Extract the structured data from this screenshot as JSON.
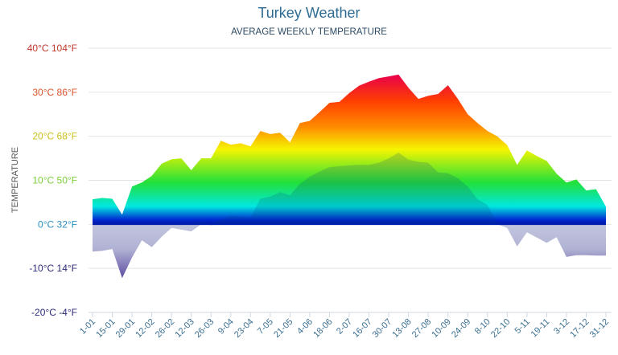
{
  "chart_data": {
    "type": "area",
    "title": "Turkey Weather",
    "subtitle": "AVERAGE WEEKLY TEMPERATURE",
    "ylabel": "TEMPERATURE",
    "xlabel": "",
    "ylim": [
      -20,
      40
    ],
    "grid": true,
    "y_ticks": [
      {
        "value": 40,
        "label": "40°C 104°F",
        "color": "#c0392b"
      },
      {
        "value": 30,
        "label": "30°C 86°F",
        "color": "#d9542b"
      },
      {
        "value": 20,
        "label": "20°C 68°F",
        "color": "#cfc020"
      },
      {
        "value": 10,
        "label": "10°C 50°F",
        "color": "#7ccf3a"
      },
      {
        "value": 0,
        "label": "0°C 32°F",
        "color": "#2a8fc0"
      },
      {
        "value": -10,
        "label": "-10°C 14°F",
        "color": "#2c2c7a"
      },
      {
        "value": -20,
        "label": "-20°C -4°F",
        "color": "#2c2c7a"
      }
    ],
    "x_tick_labels": [
      "1-01",
      "15-01",
      "29-01",
      "12-02",
      "26-02",
      "12-03",
      "26-03",
      "9-04",
      "23-04",
      "7-05",
      "21-05",
      "4-06",
      "18-06",
      "2-07",
      "16-07",
      "30-07",
      "13-08",
      "27-08",
      "10-09",
      "24-09",
      "8-10",
      "22-10",
      "5-11",
      "19-11",
      "3-12",
      "17-12",
      "31-12"
    ],
    "series": [
      {
        "values": [
          5.7,
          6.0,
          5.8,
          2.2,
          8.6,
          9.5,
          11.0,
          13.8,
          14.8,
          15.0,
          12.3,
          15.0,
          15.0,
          19.0,
          18.1,
          18.4,
          17.7,
          21.2,
          20.5,
          20.8,
          18.6,
          23.0,
          23.5,
          25.5,
          27.6,
          27.8,
          29.8,
          31.5,
          32.4,
          33.2,
          33.6,
          34.0,
          31.0,
          28.5,
          29.2,
          29.6,
          31.6,
          28.5,
          25.0,
          23.0,
          21.2,
          20.0,
          18.0,
          13.5,
          16.8,
          15.5,
          14.4,
          11.5,
          9.5,
          10.2,
          7.7,
          8.0,
          4.0
        ]
      },
      {
        "values": [
          -6.2,
          -6.0,
          -5.6,
          -12.2,
          -7.5,
          -3.6,
          -5.2,
          -2.8,
          -0.8,
          -1.2,
          -1.6,
          0.6,
          -0.2,
          1.2,
          2.0,
          1.8,
          1.6,
          5.8,
          6.3,
          7.3,
          6.6,
          9.2,
          10.8,
          12.0,
          13.0,
          13.2,
          13.4,
          13.5,
          13.5,
          14.0,
          15.0,
          16.3,
          14.7,
          14.2,
          14.0,
          11.8,
          11.6,
          10.5,
          8.6,
          5.7,
          4.4,
          0.3,
          -0.8,
          -5.0,
          -1.8,
          -3.0,
          -4.2,
          -2.9,
          -7.4,
          -7.0,
          -7.0,
          -7.1,
          -7.1
        ]
      }
    ],
    "colors": {
      "hot": "#e8004a",
      "warm": "#ff8c00",
      "mild": "#f5f500",
      "cool": "#22e03a",
      "cold": "#00e8e0",
      "zero": "#0028d0",
      "below_zero_light": "#c3c6de",
      "below_zero_dark": "#5a48a0"
    }
  }
}
